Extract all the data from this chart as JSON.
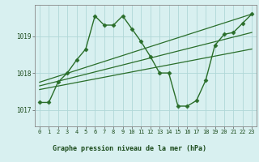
{
  "background_color": "#d8f0f0",
  "plot_bg_color": "#d8f0f0",
  "grid_color": "#b0d8d8",
  "line_color": "#2a6e2a",
  "title": "Graphe pression niveau de la mer (hPa)",
  "title_bg": "#c0e8d0",
  "ylabel_ticks": [
    1017,
    1018,
    1019
  ],
  "xlim": [
    -0.5,
    23.5
  ],
  "ylim": [
    1016.55,
    1019.85
  ],
  "series": [
    {
      "x": [
        0,
        1,
        2,
        3,
        4,
        5,
        6,
        7,
        8,
        9,
        10,
        11,
        12,
        13,
        14,
        15,
        16,
        17,
        18,
        19,
        20,
        21,
        22,
        23
      ],
      "y": [
        1017.2,
        1017.2,
        1017.75,
        1018.0,
        1018.35,
        1018.65,
        1019.55,
        1019.3,
        1019.3,
        1019.55,
        1019.2,
        1018.85,
        1018.45,
        1018.0,
        1018.0,
        1017.1,
        1017.1,
        1017.25,
        1017.8,
        1018.75,
        1019.05,
        1019.1,
        1019.35,
        1019.6
      ],
      "marker": "D",
      "markersize": 2.5,
      "linewidth": 1.0
    },
    {
      "x": [
        0,
        23
      ],
      "y": [
        1017.75,
        1019.6
      ],
      "linewidth": 0.9
    },
    {
      "x": [
        0,
        23
      ],
      "y": [
        1017.65,
        1019.1
      ],
      "linewidth": 0.9
    },
    {
      "x": [
        0,
        23
      ],
      "y": [
        1017.55,
        1018.65
      ],
      "linewidth": 0.9
    }
  ],
  "tick_fontsize": 5.0,
  "title_fontsize": 6.0,
  "figsize": [
    3.2,
    2.0
  ],
  "dpi": 100
}
